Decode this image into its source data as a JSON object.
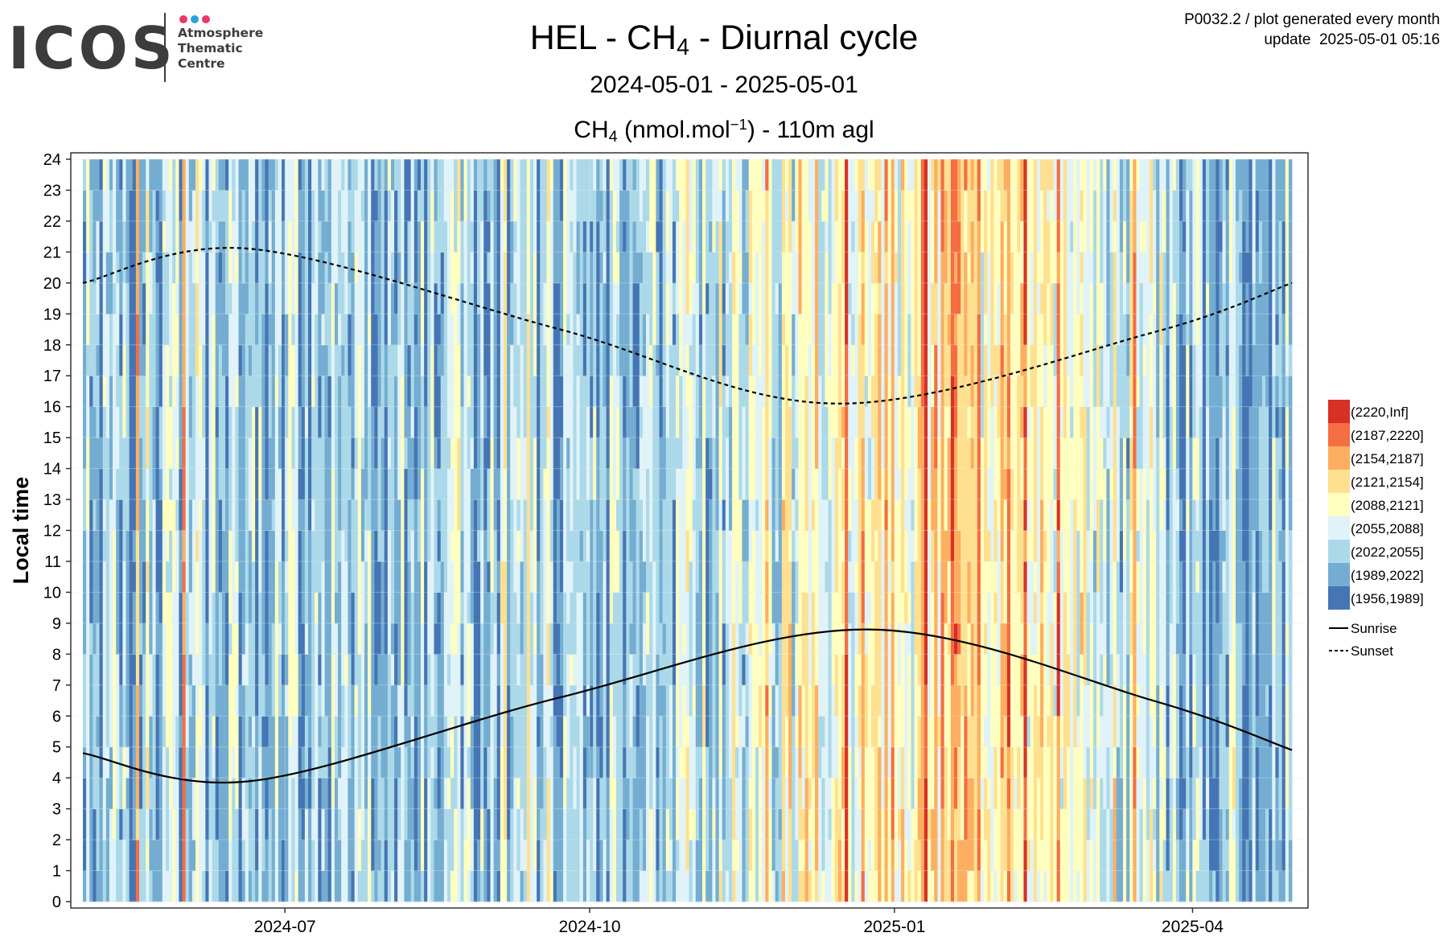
{
  "header": {
    "logo_text": "ICOS",
    "logo_sub": [
      "Atmosphere",
      "Thematic",
      "Centre"
    ],
    "logo_dot_colors": [
      "#e8386d",
      "#2aa0e0",
      "#e8386d"
    ],
    "meta_line1": "P0032.2 / plot generated every month",
    "meta_line2": "update  2025-05-01 05:16"
  },
  "title": {
    "pre": "HEL - CH",
    "sub": "4",
    "post": " - Diurnal cycle"
  },
  "subtitle": "2024-05-01 - 2025-05-01",
  "unit": {
    "pre": "CH",
    "sub": "4",
    "mid": " (nmol.mol",
    "sup": "−1",
    "post": ") - 110m agl"
  },
  "chart_data": {
    "type": "heatmap",
    "xlabel": "",
    "ylabel": "Local time",
    "x_range": [
      "2024-05-01",
      "2025-05-01"
    ],
    "x_ticks": [
      "2024-07",
      "2024-10",
      "2025-01",
      "2025-04"
    ],
    "x_tick_dates": [
      "2024-07-01",
      "2024-10-01",
      "2025-01-01",
      "2025-04-01"
    ],
    "y_range": [
      0,
      24
    ],
    "y_ticks": [
      0,
      1,
      2,
      3,
      4,
      5,
      6,
      7,
      8,
      9,
      10,
      11,
      12,
      13,
      14,
      15,
      16,
      17,
      18,
      19,
      20,
      21,
      22,
      23,
      24
    ],
    "color_classes": [
      {
        "label": "(2220,Inf]",
        "color": "#d73027"
      },
      {
        "label": "(2187,2220]",
        "color": "#f46d43"
      },
      {
        "label": "(2154,2187]",
        "color": "#fdae61"
      },
      {
        "label": "(2121,2154]",
        "color": "#fee090"
      },
      {
        "label": "(2088,2121]",
        "color": "#ffffbf"
      },
      {
        "label": "(2055,2088]",
        "color": "#e0f3f8"
      },
      {
        "label": "(2022,2055]",
        "color": "#abd9e9"
      },
      {
        "label": "(1989,2022]",
        "color": "#74add1"
      },
      {
        "label": "(1956,1989]",
        "color": "#4575b4"
      }
    ],
    "lines": [
      {
        "name": "Sunrise",
        "style": "solid",
        "points": [
          [
            "2024-05-01",
            4.8
          ],
          [
            "2024-06-21",
            3.9
          ],
          [
            "2024-09-22",
            6.6
          ],
          [
            "2024-12-24",
            8.8
          ],
          [
            "2025-03-20",
            6.5
          ],
          [
            "2025-05-01",
            4.9
          ]
        ]
      },
      {
        "name": "Sunset",
        "style": "dashed",
        "points": [
          [
            "2024-05-01",
            20.0
          ],
          [
            "2024-06-21",
            21.1
          ],
          [
            "2024-09-22",
            18.5
          ],
          [
            "2024-12-15",
            16.1
          ],
          [
            "2025-03-20",
            18.4
          ],
          [
            "2025-05-01",
            20.0
          ]
        ]
      }
    ],
    "grid": true,
    "legend_position": "right"
  }
}
